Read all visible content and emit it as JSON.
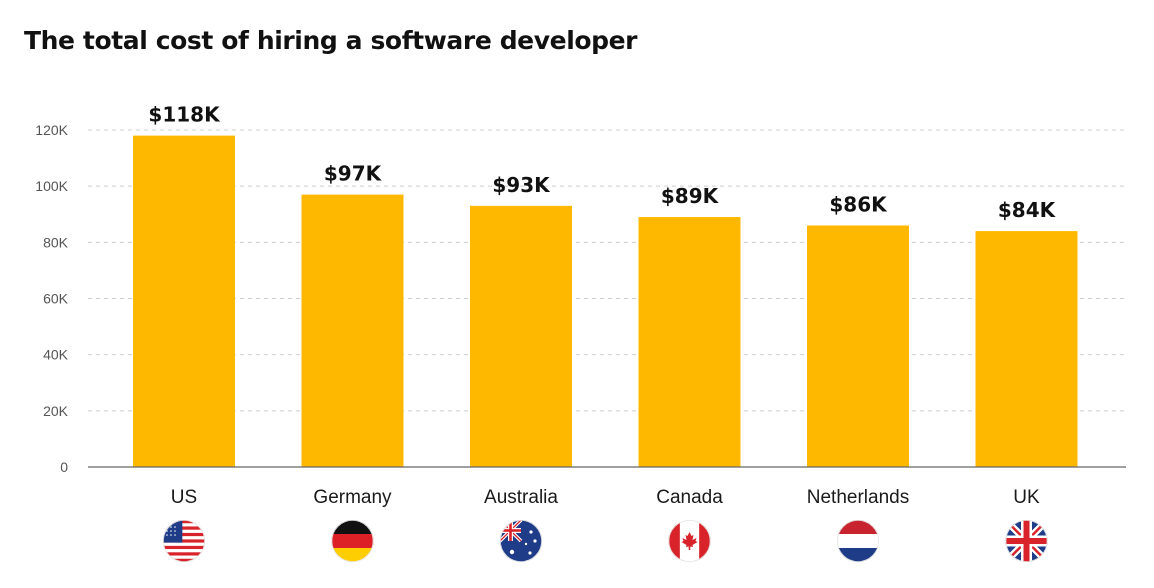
{
  "chart_data": {
    "type": "bar",
    "title": "The total cost of hiring a software developer",
    "xlabel": "",
    "ylabel": "",
    "categories": [
      "US",
      "Germany",
      "Australia",
      "Canada",
      "Netherlands",
      "UK"
    ],
    "values": [
      118000,
      97000,
      93000,
      89000,
      86000,
      84000
    ],
    "data_labels": [
      "$118K",
      "$97K",
      "$93K",
      "$89K",
      "$86K",
      "$84K"
    ],
    "flags": [
      "us-flag-icon",
      "germany-flag-icon",
      "australia-flag-icon",
      "canada-flag-icon",
      "netherlands-flag-icon",
      "uk-flag-icon"
    ],
    "ylim": [
      0,
      120000
    ],
    "yticks": [
      0,
      20000,
      40000,
      60000,
      80000,
      100000,
      120000
    ],
    "ytick_labels": [
      "0",
      "20K",
      "40K",
      "60K",
      "80K",
      "100K",
      "120K"
    ],
    "grid": true,
    "legend": "none",
    "colors": {
      "bar": "#FFB800",
      "grid": "#cfcfcf",
      "axis": "#666666"
    }
  }
}
